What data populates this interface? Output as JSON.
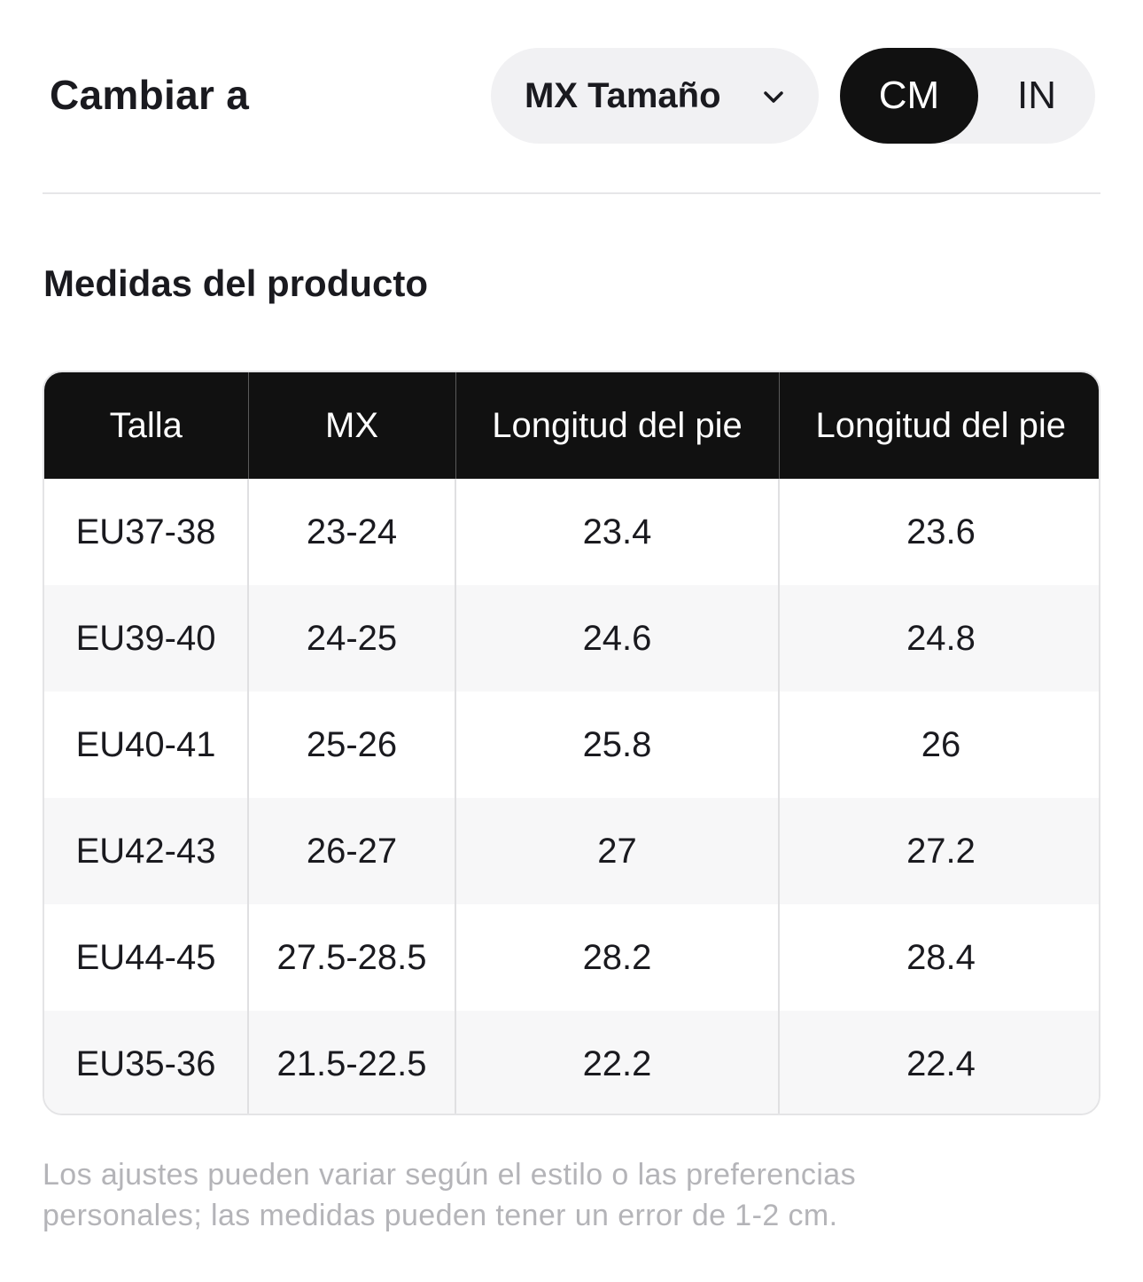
{
  "header": {
    "switch_label": "Cambiar a",
    "size_select": {
      "value": "MX Tamaño",
      "icon": "chevron-down-icon"
    },
    "unit_toggle": {
      "options": [
        "CM",
        "IN"
      ],
      "selected": "CM"
    }
  },
  "section": {
    "title": "Medidas del producto"
  },
  "table": {
    "headers": [
      "Talla",
      "MX",
      "Longitud del pie",
      "Longitud del pie"
    ],
    "rows": [
      [
        "EU37-38",
        "23-24",
        "23.4",
        "23.6"
      ],
      [
        "EU39-40",
        "24-25",
        "24.6",
        "24.8"
      ],
      [
        "EU40-41",
        "25-26",
        "25.8",
        "26"
      ],
      [
        "EU42-43",
        "26-27",
        "27",
        "27.2"
      ],
      [
        "EU44-45",
        "27.5-28.5",
        "28.2",
        "28.4"
      ],
      [
        "EU35-36",
        "21.5-22.5",
        "22.2",
        "22.4"
      ]
    ]
  },
  "note": {
    "line1": "Los ajustes pueden variar según el estilo o las preferencias",
    "line2": "personales; las medidas pueden tener un error de 1-2 cm."
  },
  "colors": {
    "accent": "#111111",
    "pill_bg": "#f1f1f3",
    "alt_row": "#f7f7f8",
    "note_text": "#b4b4b8"
  }
}
